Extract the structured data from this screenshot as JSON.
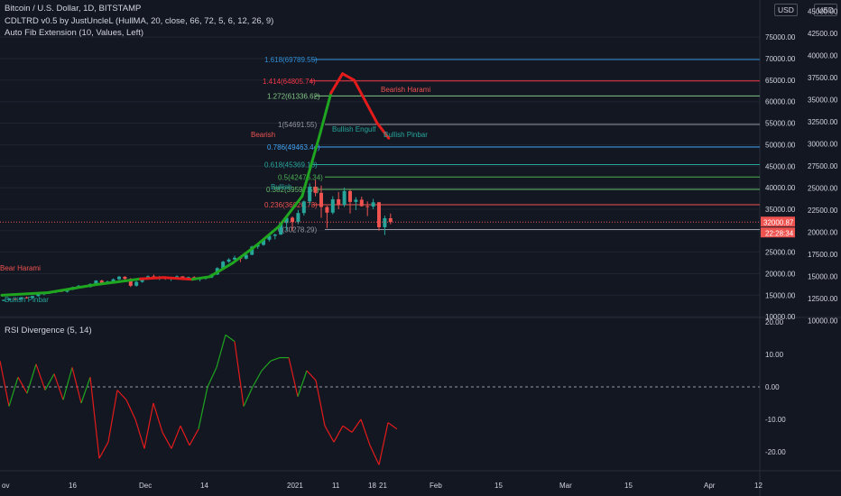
{
  "legend": {
    "symbol": "Bitcoin / U.S. Dollar, 1D, BITSTAMP",
    "indicator1": "CDLTRD v0.5 by JustUncleL (HullMA, 20, close, 66, 72, 5, 6, 12, 26, 9)",
    "indicator2": "Auto Fib Extension (10, Values, Left)"
  },
  "rsi_title": "RSI Divergence (5, 14)",
  "currency_badge": "USD",
  "colors": {
    "background": "#131722",
    "up_candle": "#26a69a",
    "down_candle": "#ef5350",
    "hull_up": "#1fa51f",
    "hull_down": "#e31b1b",
    "price_badge": "#ef5350",
    "grid": "#1f2430"
  },
  "chart_data": [
    {
      "type": "candlestick",
      "title": "Bitcoin / U.S. Dollar, 1D, BITSTAMP",
      "price_axis_left": [
        "75000.00",
        "70000.00",
        "65000.00",
        "60000.00",
        "55000.00",
        "50000.00",
        "45000.00",
        "40000.00",
        "35000.00",
        "30000.00",
        "25000.00",
        "20000.00",
        "15000.00",
        "10000.00"
      ],
      "price_axis_right": [
        "45000.00",
        "42500.00",
        "40000.00",
        "37500.00",
        "35000.00",
        "32500.00",
        "30000.00",
        "27500.00",
        "25000.00",
        "22500.00",
        "20000.00",
        "17500.00",
        "15000.00",
        "12500.00",
        "10000.00"
      ],
      "current_price": "32000.87",
      "countdown": "22:28:34",
      "fib_levels": [
        {
          "label": "1.618(69789.55)",
          "value": 69789.55,
          "color": "#2f8fd6"
        },
        {
          "label": "1.414(64805.74)",
          "value": 64805.74,
          "color": "#f23645"
        },
        {
          "label": "1.272(61336.62)",
          "value": 61336.62,
          "color": "#81c784"
        },
        {
          "label": "1(54691.55)",
          "value": 54691.55,
          "color": "#9598a1"
        },
        {
          "label": "0.786(49463.44)",
          "value": 49463.44,
          "color": "#42a5f5"
        },
        {
          "label": "0.618(45369.13)",
          "value": 45369.13,
          "color": "#26a69a"
        },
        {
          "label": "0.5(42476.34)",
          "value": 42476.34,
          "color": "#4caf50"
        },
        {
          "label": "0.382(39597.55)",
          "value": 39597.55,
          "color": "#66bb6a"
        },
        {
          "label": "0.236(36026.73)",
          "value": 36026.73,
          "color": "#ef5350"
        },
        {
          "label": "0(30278.29)",
          "value": 30278.29,
          "color": "#9598a1"
        }
      ],
      "candles": [
        [
          13800,
          14000,
          13600,
          13900
        ],
        [
          13900,
          14300,
          13800,
          14200
        ],
        [
          14200,
          14100,
          13900,
          14050
        ],
        [
          14050,
          14600,
          13900,
          14500
        ],
        [
          14500,
          14700,
          14200,
          14400
        ],
        [
          14400,
          14900,
          14300,
          14800
        ],
        [
          14800,
          15300,
          14700,
          15200
        ],
        [
          15200,
          15600,
          15000,
          15500
        ],
        [
          15500,
          15800,
          15300,
          15600
        ],
        [
          15600,
          16100,
          15500,
          16000
        ],
        [
          16000,
          16300,
          15700,
          15800
        ],
        [
          15800,
          16400,
          15600,
          16300
        ],
        [
          16300,
          17000,
          16200,
          16900
        ],
        [
          16900,
          17400,
          16700,
          17200
        ],
        [
          17200,
          17300,
          16800,
          16900
        ],
        [
          16900,
          17800,
          16800,
          17600
        ],
        [
          17600,
          18500,
          17400,
          18400
        ],
        [
          18400,
          18600,
          17700,
          17800
        ],
        [
          17800,
          18400,
          17600,
          18200
        ],
        [
          18200,
          18900,
          18000,
          18700
        ],
        [
          18700,
          19500,
          18500,
          19300
        ],
        [
          19300,
          19400,
          18600,
          18800
        ],
        [
          18800,
          19000,
          16900,
          17200
        ],
        [
          17200,
          18300,
          17000,
          18100
        ],
        [
          18100,
          19100,
          17900,
          18900
        ],
        [
          18900,
          19600,
          18700,
          19400
        ],
        [
          19400,
          19800,
          18800,
          19000
        ],
        [
          19000,
          19500,
          18500,
          19200
        ],
        [
          19200,
          19400,
          18600,
          18900
        ],
        [
          18900,
          19300,
          18300,
          19100
        ],
        [
          19100,
          19600,
          18900,
          19400
        ],
        [
          19400,
          19300,
          18800,
          18900
        ],
        [
          18900,
          19300,
          18700,
          19200
        ],
        [
          19200,
          19400,
          18500,
          18700
        ],
        [
          18700,
          19100,
          18200,
          18900
        ],
        [
          18900,
          19300,
          18600,
          19100
        ],
        [
          19100,
          20000,
          19000,
          19800
        ],
        [
          19800,
          21500,
          19700,
          21300
        ],
        [
          21300,
          23000,
          21100,
          22800
        ],
        [
          22800,
          23600,
          22500,
          23300
        ],
        [
          23300,
          24200,
          23000,
          23700
        ],
        [
          23700,
          24000,
          22700,
          23500
        ],
        [
          23500,
          24500,
          23300,
          24400
        ],
        [
          24400,
          26500,
          24300,
          26300
        ],
        [
          26300,
          27000,
          25800,
          26700
        ],
        [
          26700,
          28200,
          26500,
          27900
        ],
        [
          27900,
          29000,
          27500,
          28800
        ],
        [
          28800,
          29300,
          28000,
          29100
        ],
        [
          29100,
          32000,
          29000,
          31800
        ],
        [
          31800,
          33500,
          30000,
          33000
        ],
        [
          33000,
          33300,
          30000,
          32000
        ],
        [
          32000,
          34800,
          31500,
          34100
        ],
        [
          34100,
          37000,
          33500,
          36800
        ],
        [
          36800,
          41000,
          36000,
          40200
        ],
        [
          40200,
          41800,
          38000,
          38800
        ],
        [
          38800,
          40500,
          33000,
          35500
        ],
        [
          35500,
          35800,
          30600,
          34200
        ],
        [
          34200,
          38000,
          33800,
          37300
        ],
        [
          37300,
          39000,
          35000,
          36000
        ],
        [
          36000,
          40000,
          35500,
          39200
        ],
        [
          39200,
          39500,
          34000,
          36700
        ],
        [
          36700,
          37800,
          34800,
          37200
        ],
        [
          37200,
          37900,
          35600,
          35700
        ],
        [
          35700,
          36800,
          33400,
          35600
        ],
        [
          35600,
          37400,
          35000,
          36600
        ],
        [
          36600,
          36700,
          30000,
          30800
        ],
        [
          30800,
          33500,
          29000,
          32900
        ],
        [
          32900,
          34000,
          31500,
          32000
        ]
      ],
      "hull_ma": [
        [
          0,
          15000,
          "up"
        ],
        [
          8,
          15600,
          "up"
        ],
        [
          16,
          17400,
          "up"
        ],
        [
          24,
          18800,
          "up"
        ],
        [
          28,
          19100,
          "down"
        ],
        [
          33,
          18700,
          "down"
        ],
        [
          36,
          19300,
          "up"
        ],
        [
          40,
          22500,
          "up"
        ],
        [
          44,
          26500,
          "up"
        ],
        [
          48,
          31000,
          "up"
        ],
        [
          52,
          38000,
          "up"
        ],
        [
          55,
          52000,
          "up"
        ],
        [
          57,
          62000,
          "up"
        ],
        [
          59,
          66500,
          "down"
        ],
        [
          61,
          65000,
          "down"
        ],
        [
          63,
          60000,
          "down"
        ],
        [
          65,
          55000,
          "down"
        ],
        [
          67,
          51500,
          "down"
        ]
      ],
      "signal_labels": [
        "Bear Harami",
        "Bullish Pinbar",
        "Bullish",
        "Bearish",
        "Bullish Engulf",
        "Bearish Harami",
        "Bullish Pinbar"
      ]
    },
    {
      "type": "line",
      "title": "RSI Divergence (5, 14)",
      "y_ticks": [
        "20.00",
        "10.00",
        "0.00",
        "-10.00",
        "-20.00"
      ],
      "ylim": [
        -25,
        22
      ],
      "x_tick_labels": [
        "ov",
        "16",
        "Dec",
        "14",
        "2021",
        "11",
        "18",
        "21",
        "Feb",
        "15",
        "Mar",
        "15",
        "Apr",
        "12"
      ],
      "values": [
        [
          0,
          8,
          "g"
        ],
        [
          4,
          -6,
          "r"
        ],
        [
          8,
          3,
          "g"
        ],
        [
          12,
          -2,
          "r"
        ],
        [
          16,
          7,
          "g"
        ],
        [
          20,
          -1,
          "r"
        ],
        [
          24,
          4,
          "g"
        ],
        [
          28,
          -4,
          "r"
        ],
        [
          32,
          6,
          "g"
        ],
        [
          36,
          -5,
          "r"
        ],
        [
          40,
          3,
          "g"
        ],
        [
          44,
          -22,
          "r"
        ],
        [
          48,
          -17,
          "r"
        ],
        [
          52,
          -1,
          "r"
        ],
        [
          56,
          -4,
          "r"
        ],
        [
          60,
          -10,
          "r"
        ],
        [
          64,
          -19,
          "r"
        ],
        [
          68,
          -5,
          "r"
        ],
        [
          72,
          -14,
          "r"
        ],
        [
          76,
          -19,
          "r"
        ],
        [
          80,
          -12,
          "r"
        ],
        [
          84,
          -18,
          "r"
        ],
        [
          88,
          -13,
          "r"
        ],
        [
          92,
          0,
          "g"
        ],
        [
          96,
          6,
          "g"
        ],
        [
          100,
          16,
          "g"
        ],
        [
          104,
          14,
          "g"
        ],
        [
          108,
          -6,
          "r"
        ],
        [
          112,
          0,
          "g"
        ],
        [
          116,
          5,
          "g"
        ],
        [
          120,
          8,
          "g"
        ],
        [
          124,
          9,
          "g"
        ],
        [
          128,
          9,
          "g"
        ],
        [
          132,
          -3,
          "r"
        ],
        [
          136,
          5,
          "g"
        ],
        [
          140,
          2,
          "r"
        ],
        [
          144,
          -12,
          "r"
        ],
        [
          148,
          -17,
          "r"
        ],
        [
          152,
          -12,
          "r"
        ],
        [
          156,
          -14,
          "r"
        ],
        [
          160,
          -10,
          "r"
        ],
        [
          164,
          -18,
          "r"
        ],
        [
          168,
          -24,
          "r"
        ],
        [
          172,
          -11,
          "r"
        ],
        [
          176,
          -13,
          "r"
        ]
      ]
    }
  ]
}
